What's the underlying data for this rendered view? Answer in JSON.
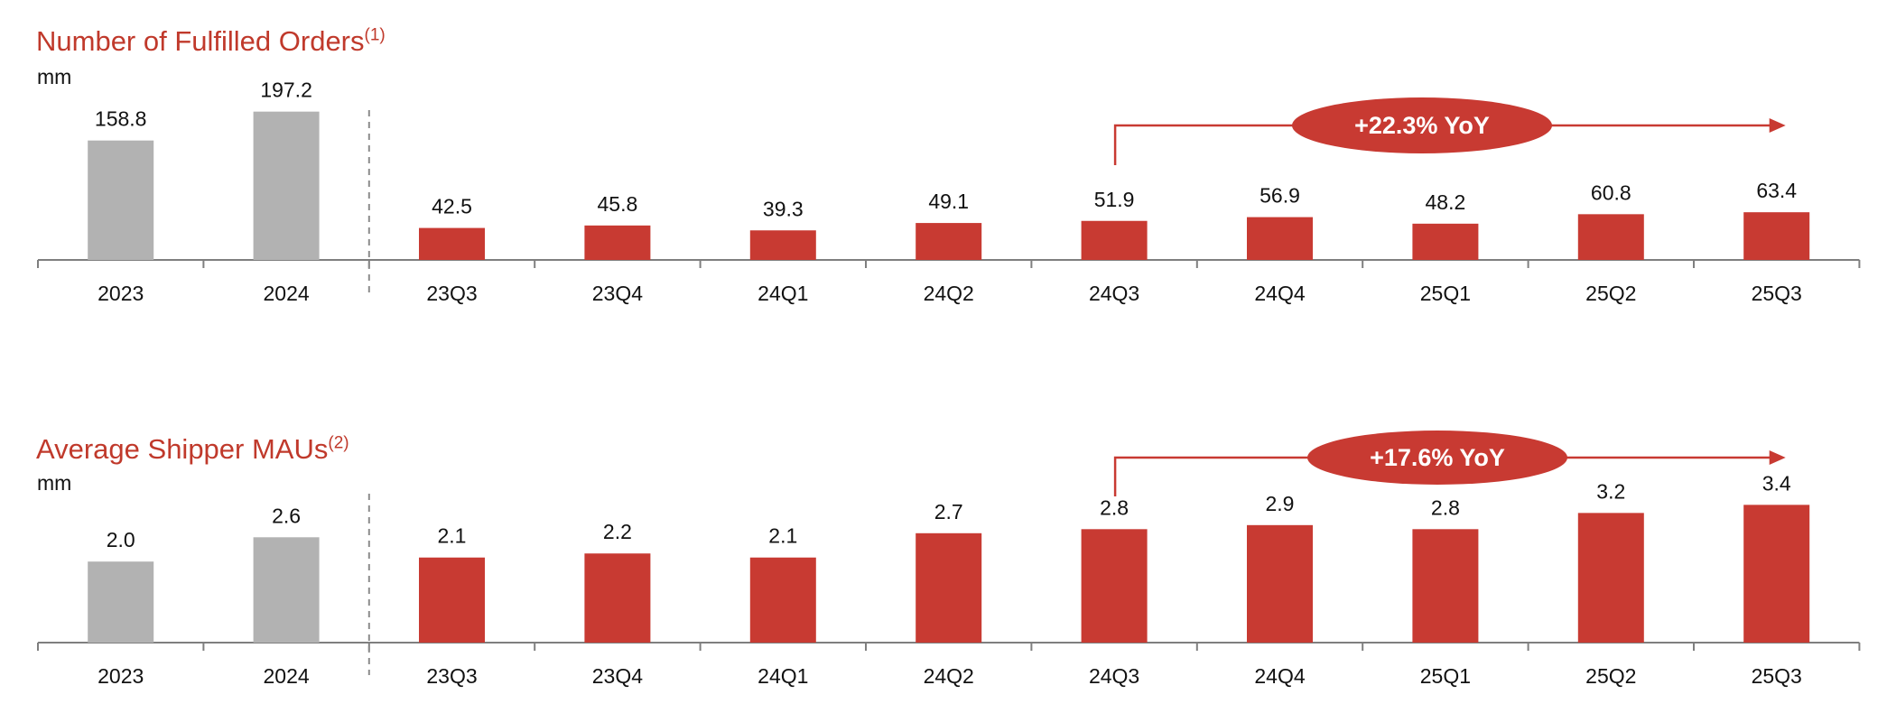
{
  "colors": {
    "annual": "#b2b2b2",
    "quarterly": "#c83a32",
    "title": "#c0392b",
    "axis": "#7f7f7f"
  },
  "chart_data": [
    {
      "type": "bar",
      "title": "Number of Fulfilled Orders",
      "title_note": "(1)",
      "unit": "mm",
      "categories": [
        "2023",
        "2024",
        "23Q3",
        "23Q4",
        "24Q1",
        "24Q2",
        "24Q3",
        "24Q4",
        "25Q1",
        "25Q2",
        "25Q3"
      ],
      "values": [
        158.8,
        197.2,
        42.5,
        45.8,
        39.3,
        49.1,
        51.9,
        56.9,
        48.2,
        60.8,
        63.4
      ],
      "labels": [
        "158.8",
        "197.2",
        "42.5",
        "45.8",
        "39.3",
        "49.1",
        "51.9",
        "56.9",
        "48.2",
        "60.8",
        "63.4"
      ],
      "annual_count": 2,
      "ylim": [
        0,
        210
      ],
      "grid": false,
      "annotation": {
        "text": "+22.3% YoY",
        "from": "24Q3",
        "to": "25Q3"
      }
    },
    {
      "type": "bar",
      "title": "Average Shipper MAUs",
      "title_note": "(2)",
      "unit": "mm",
      "categories": [
        "2023",
        "2024",
        "23Q3",
        "23Q4",
        "24Q1",
        "24Q2",
        "24Q3",
        "24Q4",
        "25Q1",
        "25Q2",
        "25Q3"
      ],
      "values": [
        2.0,
        2.6,
        2.1,
        2.2,
        2.1,
        2.7,
        2.8,
        2.9,
        2.8,
        3.2,
        3.4
      ],
      "labels": [
        "2.0",
        "2.6",
        "2.1",
        "2.2",
        "2.1",
        "2.7",
        "2.8",
        "2.9",
        "2.8",
        "3.2",
        "3.4"
      ],
      "annual_count": 2,
      "ylim": [
        0,
        4.5
      ],
      "grid": false,
      "annotation": {
        "text": "+17.6% YoY",
        "from": "24Q3",
        "to": "25Q3"
      }
    }
  ]
}
